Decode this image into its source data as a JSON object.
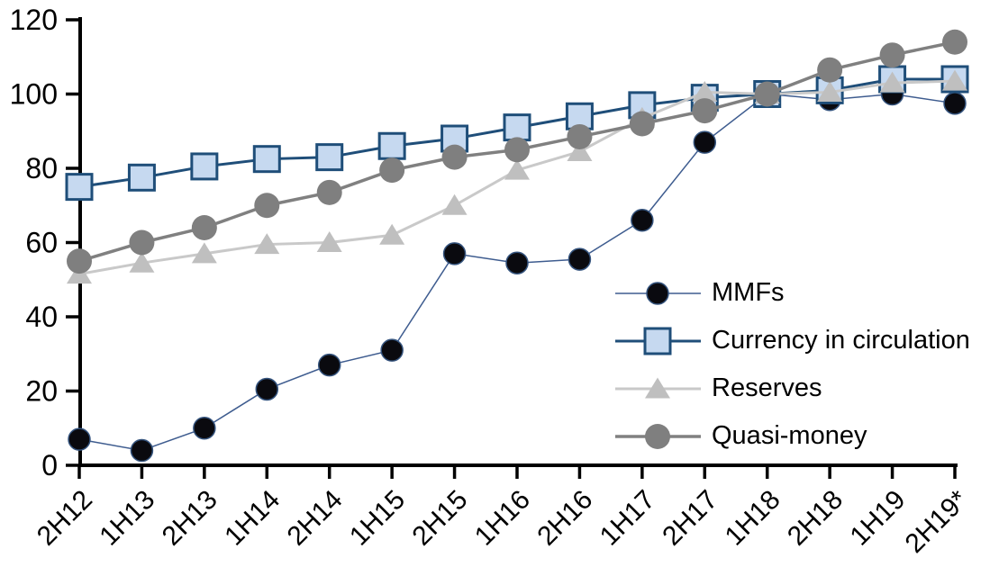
{
  "chart_data": {
    "type": "line",
    "categories": [
      "2H12",
      "1H13",
      "2H13",
      "1H14",
      "2H14",
      "1H15",
      "2H15",
      "1H16",
      "2H16",
      "1H17",
      "2H17",
      "1H18",
      "2H18",
      "1H19",
      "2H19*"
    ],
    "series": [
      {
        "name": "MMFs",
        "marker": "circle",
        "marker_size": 24,
        "marker_fill": "#0a0a0f",
        "marker_stroke": "#35547e",
        "line_color": "#3e5c8f",
        "line_width": 1.5,
        "values": [
          7,
          4,
          10,
          20.5,
          27,
          31,
          57,
          54.5,
          55.5,
          66,
          87,
          100,
          98.5,
          100,
          97.5
        ]
      },
      {
        "name": "Currency in circulation",
        "marker": "square",
        "marker_size": 28,
        "marker_fill": "#c6d9f0",
        "marker_stroke": "#1f4e79",
        "line_color": "#1f4e79",
        "line_width": 3,
        "values": [
          75,
          77.5,
          80.5,
          82.5,
          83,
          86,
          88,
          91,
          94,
          97,
          99,
          100,
          101,
          104,
          104
        ]
      },
      {
        "name": "Reserves",
        "marker": "triangle",
        "marker_size": 28,
        "marker_fill": "#bfbfbf",
        "marker_stroke": "none",
        "line_color": "#c9c9c9",
        "line_width": 3,
        "values": [
          51.5,
          54.5,
          57,
          59.5,
          60,
          62,
          70,
          79.5,
          84.5,
          93.5,
          100.5,
          100,
          100.5,
          103,
          103.5
        ]
      },
      {
        "name": "Quasi-money",
        "marker": "circle",
        "marker_size": 28,
        "marker_fill": "#7f7f7f",
        "marker_stroke": "none",
        "line_color": "#808080",
        "line_width": 3.5,
        "values": [
          55,
          60,
          64,
          70,
          73.5,
          79.5,
          83,
          85,
          88.5,
          92,
          95.5,
          100,
          106.5,
          110.5,
          114
        ]
      }
    ],
    "ylim": [
      0,
      120
    ],
    "yticks": [
      0,
      20,
      40,
      60,
      80,
      100,
      120
    ],
    "xlabel": "",
    "ylabel": "",
    "grid": false,
    "legend_position": "inside-right",
    "axis_color": "#000000",
    "tick_label_color": "#000000"
  },
  "legend": {
    "items": [
      {
        "label": "MMFs"
      },
      {
        "label": "Currency in circulation"
      },
      {
        "label": "Reserves"
      },
      {
        "label": "Quasi-money"
      }
    ]
  }
}
